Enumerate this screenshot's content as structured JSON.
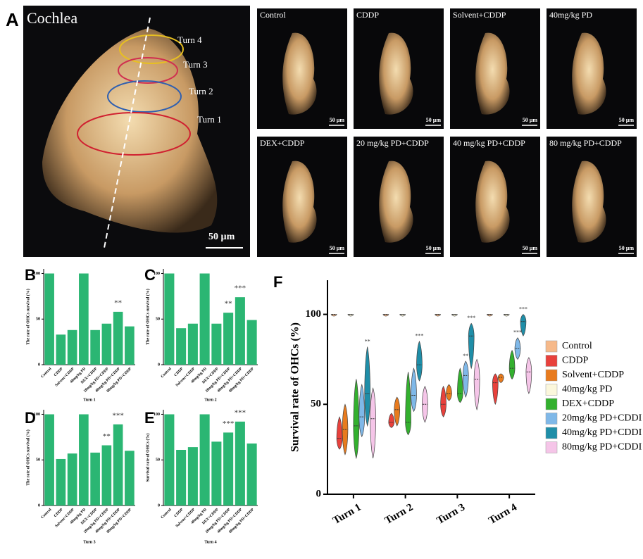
{
  "panel_a": {
    "letter": "A",
    "title": "Cochlea",
    "turns": [
      "Turn 4",
      "Turn 3",
      "Turn 2",
      "Turn 1"
    ],
    "scale": "50 µm",
    "thumbnails": [
      {
        "label": "Control",
        "scale": "50 µm"
      },
      {
        "label": "CDDP",
        "scale": "50 µm"
      },
      {
        "label": "Solvent+CDDP",
        "scale": "50 µm"
      },
      {
        "label": "40mg/kg PD",
        "scale": "50 µm"
      },
      {
        "label": "DEX+CDDP",
        "scale": "50 µm"
      },
      {
        "label": "20 mg/kg PD+CDDP",
        "scale": "50 µm"
      },
      {
        "label": "40 mg/kg PD+CDDP",
        "scale": "50 µm"
      },
      {
        "label": "80 mg/kg PD+CDDP",
        "scale": "50 µm"
      }
    ]
  },
  "chart_data": [
    {
      "type": "bar",
      "panel": "B",
      "y_label": "The rate of OHCs survival (%)",
      "x_label": "Turn 1",
      "categories": [
        "Control",
        "CDDP",
        "Solvent+CDDP",
        "40mg/kg PD",
        "DEX+CDDP",
        "20mg/kg PD+CDDP",
        "40mg/kg PD+CDDP",
        "80mg/kg PD+CDDP"
      ],
      "values": [
        100,
        33,
        38,
        100,
        38,
        45,
        58,
        42
      ],
      "significance": [
        null,
        null,
        null,
        null,
        null,
        null,
        "**",
        null
      ],
      "color": "#2bb673",
      "ylim": [
        0,
        105
      ],
      "yticks": [
        0,
        50,
        100
      ]
    },
    {
      "type": "bar",
      "panel": "C",
      "y_label": "The rate of OHCs survival (%)",
      "x_label": "Turn 2",
      "categories": [
        "Control",
        "CDDP",
        "Solvent+CDDP",
        "40mg/kg PD",
        "DEX+CDDP",
        "20mg/kg PD+CDDP",
        "40mg/kg PD+CDDP",
        "80mg/kg PD+CDDP"
      ],
      "values": [
        100,
        40,
        45,
        100,
        45,
        57,
        74,
        49
      ],
      "significance": [
        null,
        null,
        null,
        null,
        null,
        "**",
        "***",
        null
      ],
      "color": "#2bb673",
      "ylim": [
        0,
        105
      ],
      "yticks": [
        0,
        50,
        100
      ]
    },
    {
      "type": "bar",
      "panel": "D",
      "y_label": "The rate of OHCs survival (%)",
      "x_label": "Turn 3",
      "categories": [
        "Control",
        "CDDP",
        "Solvent+CDDP",
        "40mg/kg PD",
        "DEX+CDDP",
        "20mg/kg PD+CDDP",
        "40mg/kg PD+CDDP",
        "80mg/kg PD+CDDP"
      ],
      "values": [
        100,
        51,
        57,
        100,
        58,
        66,
        89,
        60
      ],
      "significance": [
        null,
        null,
        null,
        null,
        null,
        "**",
        "***",
        null
      ],
      "color": "#2bb673",
      "ylim": [
        0,
        105
      ],
      "yticks": [
        0,
        50,
        100
      ]
    },
    {
      "type": "bar",
      "panel": "E",
      "y_label": "Survival rate of OHCs  (%)",
      "x_label": "Turn 4",
      "categories": [
        "Control",
        "CDDP",
        "Solvent+CDDP",
        "40mg/kg PD",
        "DEX+CDDP",
        "20mg/kg PD+CDDP",
        "40mg/kg PD+CDDP",
        "80mg/kg PD+CDDP"
      ],
      "values": [
        100,
        61,
        64,
        100,
        70,
        80,
        92,
        68
      ],
      "significance": [
        null,
        null,
        null,
        null,
        null,
        "***",
        "***",
        null
      ],
      "color": "#2bb673",
      "ylim": [
        0,
        105
      ],
      "yticks": [
        0,
        50,
        100
      ]
    },
    {
      "type": "violin",
      "panel": "F",
      "y_label": "Survival rate of OHCs  (%)",
      "categories": [
        "Turn 1",
        "Turn 2",
        "Turn 3",
        "Turn 4"
      ],
      "ylim": [
        0,
        119
      ],
      "yticks": [
        0,
        50,
        100
      ],
      "series": [
        {
          "name": "Control",
          "color": "#f6b98a",
          "min": [
            99,
            99,
            99,
            99
          ],
          "median": [
            100,
            100,
            100,
            100
          ],
          "max": [
            100,
            100,
            100,
            100
          ],
          "significance": [
            null,
            null,
            null,
            null
          ]
        },
        {
          "name": "CDDP",
          "color": "#e8413c",
          "min": [
            25,
            37,
            43,
            50
          ],
          "median": [
            31,
            40,
            50,
            62
          ],
          "max": [
            43,
            45,
            60,
            67
          ],
          "significance": [
            null,
            null,
            null,
            null
          ]
        },
        {
          "name": "Solvent+CDDP",
          "color": "#e87b1e",
          "min": [
            22,
            38,
            52,
            62
          ],
          "median": [
            36,
            47,
            56,
            65
          ],
          "max": [
            50,
            54,
            61,
            67
          ],
          "significance": [
            null,
            null,
            null,
            null
          ]
        },
        {
          "name": "40mg/kg PD",
          "color": "#fbf7dc",
          "min": [
            99,
            99,
            99,
            99
          ],
          "median": [
            100,
            100,
            100,
            100
          ],
          "max": [
            100,
            100,
            100,
            100
          ],
          "significance": [
            null,
            null,
            null,
            null
          ]
        },
        {
          "name": "DEX+CDDP",
          "color": "#33b02e",
          "min": [
            20,
            33,
            51,
            64
          ],
          "median": [
            38,
            40,
            56,
            70
          ],
          "max": [
            64,
            68,
            70,
            80
          ],
          "significance": [
            null,
            null,
            null,
            null
          ]
        },
        {
          "name": "20mg/kg PD+CDDI",
          "color": "#7fb8e8",
          "min": [
            32,
            46,
            54,
            75
          ],
          "median": [
            43,
            55,
            66,
            81
          ],
          "max": [
            61,
            70,
            74,
            87
          ],
          "significance": [
            null,
            null,
            "**",
            "***"
          ]
        },
        {
          "name": "40mg/kg PD+CDDI",
          "color": "#1f8ea8",
          "min": [
            38,
            63,
            70,
            88
          ],
          "median": [
            56,
            72,
            88,
            96
          ],
          "max": [
            82,
            85,
            95,
            100
          ],
          "significance": [
            "**",
            "***",
            "***",
            "***"
          ]
        },
        {
          "name": "80mg/kg PD+CDDI",
          "color": "#f5c5e8",
          "min": [
            20,
            40,
            47,
            56
          ],
          "median": [
            42,
            50,
            64,
            68
          ],
          "max": [
            59,
            60,
            75,
            76
          ],
          "significance": [
            null,
            null,
            null,
            null
          ]
        }
      ]
    }
  ]
}
